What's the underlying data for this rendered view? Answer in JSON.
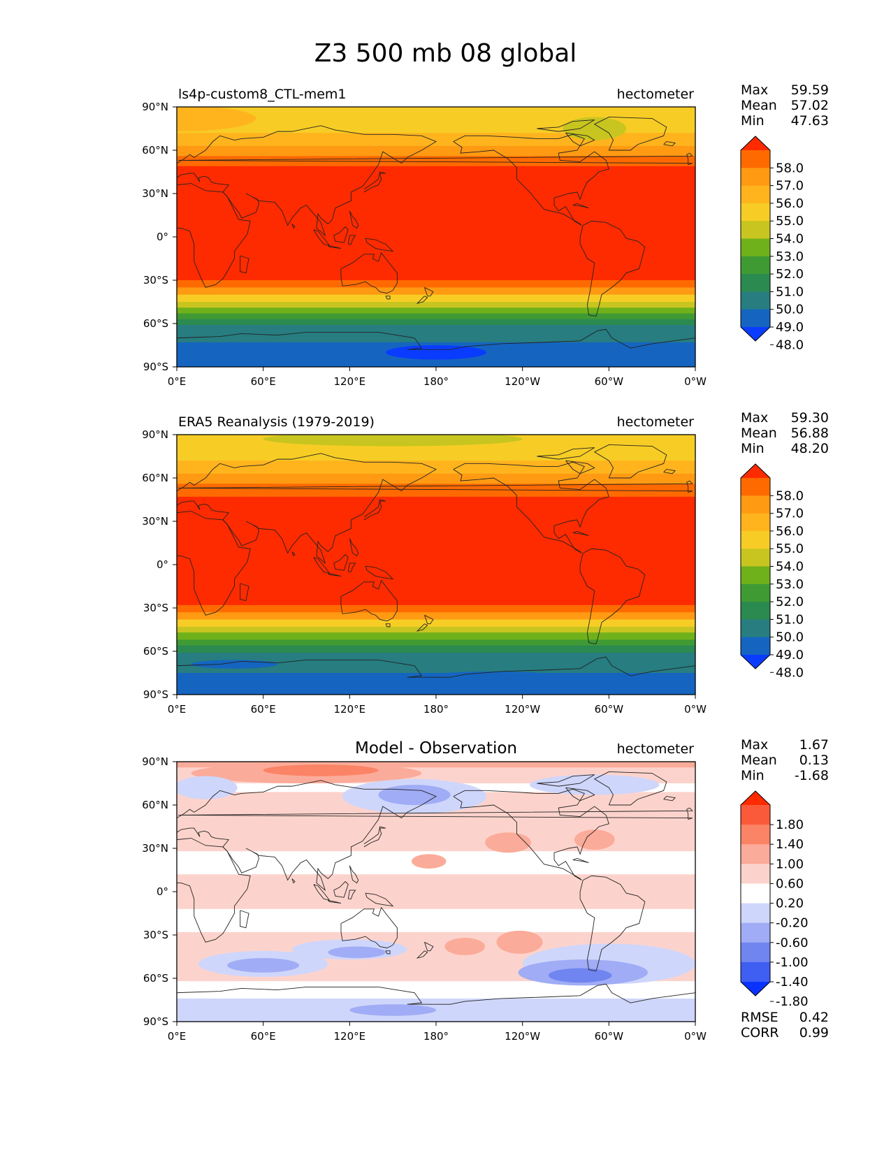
{
  "figure": {
    "title": "Z3 500 mb 08 global"
  },
  "lat_labels": [
    "90°N",
    "60°N",
    "30°N",
    "0°",
    "30°S",
    "60°S",
    "90°S"
  ],
  "lon_labels": [
    "0°E",
    "60°E",
    "120°E",
    "180°",
    "120°W",
    "60°W",
    "0°W"
  ],
  "panels": [
    {
      "id": "model",
      "left_title": "ls4p-custom8_CTL-mem1",
      "center_title": "",
      "units": "hectometer",
      "stats": [
        {
          "label": "Max",
          "value": "59.59"
        },
        {
          "label": "Mean",
          "value": "57.02"
        },
        {
          "label": "Min",
          "value": "47.63"
        }
      ],
      "extra_stats": [],
      "colorbar": {
        "ticks": [
          "58.0",
          "57.0",
          "56.0",
          "55.0",
          "54.0",
          "53.0",
          "52.0",
          "51.0",
          "50.0",
          "49.0",
          "48.0"
        ],
        "colors": [
          "#ff2b00",
          "#ff6a00",
          "#ff9a12",
          "#ffb41e",
          "#f7cd25",
          "#c8c520",
          "#6fb11b",
          "#3f9a34",
          "#2b8a50",
          "#277d80",
          "#1565c0",
          "#0a3cff"
        ]
      },
      "field_bands": [
        {
          "lat_top": 90,
          "lat_bottom": 72,
          "color": "#f7cd25"
        },
        {
          "lat_top": 72,
          "lat_bottom": 63,
          "color": "#ffb41e"
        },
        {
          "lat_top": 63,
          "lat_bottom": 56,
          "color": "#ff9a12"
        },
        {
          "lat_top": 56,
          "lat_bottom": 49,
          "color": "#ff6a00"
        },
        {
          "lat_top": 49,
          "lat_bottom": -30,
          "color": "#ff2b00"
        },
        {
          "lat_top": -30,
          "lat_bottom": -35,
          "color": "#ff6a00"
        },
        {
          "lat_top": -35,
          "lat_bottom": -40,
          "color": "#ff9a12"
        },
        {
          "lat_top": -40,
          "lat_bottom": -45,
          "color": "#f7cd25"
        },
        {
          "lat_top": -45,
          "lat_bottom": -49,
          "color": "#c8c520"
        },
        {
          "lat_top": -49,
          "lat_bottom": -53,
          "color": "#6fb11b"
        },
        {
          "lat_top": -53,
          "lat_bottom": -57,
          "color": "#3f9a34"
        },
        {
          "lat_top": -57,
          "lat_bottom": -61,
          "color": "#2b8a50"
        },
        {
          "lat_top": -61,
          "lat_bottom": -73,
          "color": "#277d80"
        },
        {
          "lat_top": -73,
          "lat_bottom": -90,
          "color": "#1565c0"
        }
      ],
      "field_blobs": [
        {
          "lon": 0,
          "lat": 82,
          "rlon": 55,
          "rlat": 9,
          "color": "#ffb41e"
        },
        {
          "lon": 290,
          "lat": 75,
          "rlon": 22,
          "rlat": 8,
          "color": "#c8c520"
        },
        {
          "lon": 180,
          "lat": -80,
          "rlon": 35,
          "rlat": 5,
          "color": "#0a3cff"
        }
      ]
    },
    {
      "id": "obs",
      "left_title": "ERA5 Reanalysis (1979-2019)",
      "center_title": "",
      "units": "hectometer",
      "stats": [
        {
          "label": "Max",
          "value": "59.30"
        },
        {
          "label": "Mean",
          "value": "56.88"
        },
        {
          "label": "Min",
          "value": "48.20"
        }
      ],
      "extra_stats": [],
      "colorbar": {
        "ticks": [
          "58.0",
          "57.0",
          "56.0",
          "55.0",
          "54.0",
          "53.0",
          "52.0",
          "51.0",
          "50.0",
          "49.0",
          "48.0"
        ],
        "colors": [
          "#ff2b00",
          "#ff6a00",
          "#ff9a12",
          "#ffb41e",
          "#f7cd25",
          "#c8c520",
          "#6fb11b",
          "#3f9a34",
          "#2b8a50",
          "#277d80",
          "#1565c0",
          "#0a3cff"
        ]
      },
      "field_bands": [
        {
          "lat_top": 90,
          "lat_bottom": 72,
          "color": "#f7cd25"
        },
        {
          "lat_top": 72,
          "lat_bottom": 63,
          "color": "#ffb41e"
        },
        {
          "lat_top": 63,
          "lat_bottom": 56,
          "color": "#ff9a12"
        },
        {
          "lat_top": 56,
          "lat_bottom": 47,
          "color": "#ff6a00"
        },
        {
          "lat_top": 47,
          "lat_bottom": -28,
          "color": "#ff2b00"
        },
        {
          "lat_top": -28,
          "lat_bottom": -33,
          "color": "#ff6a00"
        },
        {
          "lat_top": -33,
          "lat_bottom": -38,
          "color": "#ff9a12"
        },
        {
          "lat_top": -38,
          "lat_bottom": -43,
          "color": "#f7cd25"
        },
        {
          "lat_top": -43,
          "lat_bottom": -47,
          "color": "#c8c520"
        },
        {
          "lat_top": -47,
          "lat_bottom": -52,
          "color": "#6fb11b"
        },
        {
          "lat_top": -52,
          "lat_bottom": -56,
          "color": "#3f9a34"
        },
        {
          "lat_top": -56,
          "lat_bottom": -61,
          "color": "#2b8a50"
        },
        {
          "lat_top": -61,
          "lat_bottom": -75,
          "color": "#277d80"
        },
        {
          "lat_top": -75,
          "lat_bottom": -90,
          "color": "#1565c0"
        }
      ],
      "field_blobs": [
        {
          "lon": 150,
          "lat": 87,
          "rlon": 90,
          "rlat": 5,
          "color": "#c8c520"
        },
        {
          "lon": 220,
          "lat": -82,
          "rlon": 70,
          "rlat": 8,
          "color": "#1565c0"
        },
        {
          "lon": 40,
          "lat": -69,
          "rlon": 30,
          "rlat": 3,
          "color": "#1565c0"
        }
      ]
    },
    {
      "id": "diff",
      "left_title": "",
      "center_title": "Model - Observation",
      "units": "hectometer",
      "stats": [
        {
          "label": "Max",
          "value": "1.67"
        },
        {
          "label": "Mean",
          "value": "0.13"
        },
        {
          "label": "Min",
          "value": "-1.68"
        }
      ],
      "extra_stats": [
        {
          "label": "RMSE",
          "value": "0.42"
        },
        {
          "label": "CORR",
          "value": "0.99"
        }
      ],
      "colorbar": {
        "ticks": [
          "1.80",
          "1.40",
          "1.00",
          "0.60",
          "0.20",
          "-0.20",
          "-0.60",
          "-1.00",
          "-1.40",
          "-1.80"
        ],
        "colors": [
          "#ff2b00",
          "#fb5a3a",
          "#fb8366",
          "#fbab99",
          "#fcd3cc",
          "#ffffff",
          "#cfd6fb",
          "#a0acf5",
          "#7085ef",
          "#3f5ef2",
          "#0a32ff"
        ]
      },
      "field_bands": [
        {
          "lat_top": 90,
          "lat_bottom": 86,
          "color": "#fbab99"
        },
        {
          "lat_top": 86,
          "lat_bottom": 75,
          "color": "#fcd3cc"
        },
        {
          "lat_top": 75,
          "lat_bottom": 69,
          "color": "#ffffff"
        },
        {
          "lat_top": 69,
          "lat_bottom": 28,
          "color": "#fcd3cc"
        },
        {
          "lat_top": 28,
          "lat_bottom": 12,
          "color": "#ffffff"
        },
        {
          "lat_top": 12,
          "lat_bottom": -12,
          "color": "#fcd3cc"
        },
        {
          "lat_top": -12,
          "lat_bottom": -28,
          "color": "#ffffff"
        },
        {
          "lat_top": -28,
          "lat_bottom": -62,
          "color": "#fcd3cc"
        },
        {
          "lat_top": -62,
          "lat_bottom": -74,
          "color": "#ffffff"
        },
        {
          "lat_top": -74,
          "lat_bottom": -90,
          "color": "#cfd6fb"
        }
      ],
      "field_blobs": [
        {
          "lon": 90,
          "lat": 82,
          "rlon": 80,
          "rlat": 7,
          "color": "#fbab99"
        },
        {
          "lon": 100,
          "lat": 84,
          "rlon": 40,
          "rlat": 4,
          "color": "#fb8366"
        },
        {
          "lon": 165,
          "lat": 66,
          "rlon": 50,
          "rlat": 12,
          "color": "#cfd6fb"
        },
        {
          "lon": 165,
          "lat": 67,
          "rlon": 25,
          "rlat": 7,
          "color": "#a0acf5"
        },
        {
          "lon": 290,
          "lat": 74,
          "rlon": 45,
          "rlat": 7,
          "color": "#cfd6fb"
        },
        {
          "lon": 20,
          "lat": 72,
          "rlon": 22,
          "rlat": 8,
          "color": "#cfd6fb"
        },
        {
          "lon": 175,
          "lat": 21,
          "rlon": 12,
          "rlat": 5,
          "color": "#fbab99"
        },
        {
          "lon": 230,
          "lat": 34,
          "rlon": 16,
          "rlat": 7,
          "color": "#fbab99"
        },
        {
          "lon": 290,
          "lat": 36,
          "rlon": 14,
          "rlat": 7,
          "color": "#fbab99"
        },
        {
          "lon": 300,
          "lat": -50,
          "rlon": 60,
          "rlat": 14,
          "color": "#cfd6fb"
        },
        {
          "lon": 282,
          "lat": -56,
          "rlon": 45,
          "rlat": 9,
          "color": "#a0acf5"
        },
        {
          "lon": 280,
          "lat": -58,
          "rlon": 22,
          "rlat": 5,
          "color": "#7085ef"
        },
        {
          "lon": 60,
          "lat": -50,
          "rlon": 45,
          "rlat": 9,
          "color": "#cfd6fb"
        },
        {
          "lon": 60,
          "lat": -51,
          "rlon": 25,
          "rlat": 5,
          "color": "#a0acf5"
        },
        {
          "lon": 120,
          "lat": -40,
          "rlon": 40,
          "rlat": 7,
          "color": "#cfd6fb"
        },
        {
          "lon": 125,
          "lat": -42,
          "rlon": 20,
          "rlat": 4,
          "color": "#a0acf5"
        },
        {
          "lon": 238,
          "lat": -35,
          "rlon": 16,
          "rlat": 8,
          "color": "#fbab99"
        },
        {
          "lon": 200,
          "lat": -38,
          "rlon": 14,
          "rlat": 6,
          "color": "#fbab99"
        },
        {
          "lon": 150,
          "lat": -82,
          "rlon": 30,
          "rlat": 4,
          "color": "#a0acf5"
        }
      ]
    }
  ]
}
